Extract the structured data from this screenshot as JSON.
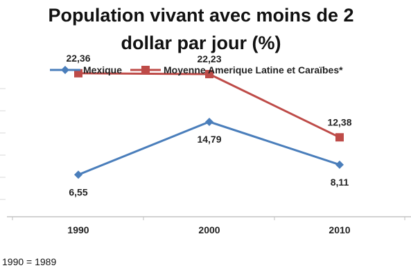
{
  "chart_data": {
    "type": "line",
    "title": "Population vivant avec moins de 2 dollar par jour (%)",
    "categories": [
      "1990",
      "2000",
      "2010"
    ],
    "series": [
      {
        "name": "Mexique",
        "values": [
          6.55,
          14.79,
          8.11
        ],
        "labels": [
          "6,55",
          "14,79",
          "8,11"
        ],
        "color": "#4a7ebb",
        "marker": "diamond"
      },
      {
        "name": "Moyenne Amerique Latine et Caraïbes*",
        "values": [
          22.36,
          22.23,
          12.38
        ],
        "labels": [
          "22,36",
          "22,23",
          "12,38"
        ],
        "color": "#be4b48",
        "marker": "square"
      }
    ],
    "ylim": [
      0,
      30
    ],
    "legend_position": "top",
    "grid": false
  },
  "footnote": "1990 = 1989"
}
